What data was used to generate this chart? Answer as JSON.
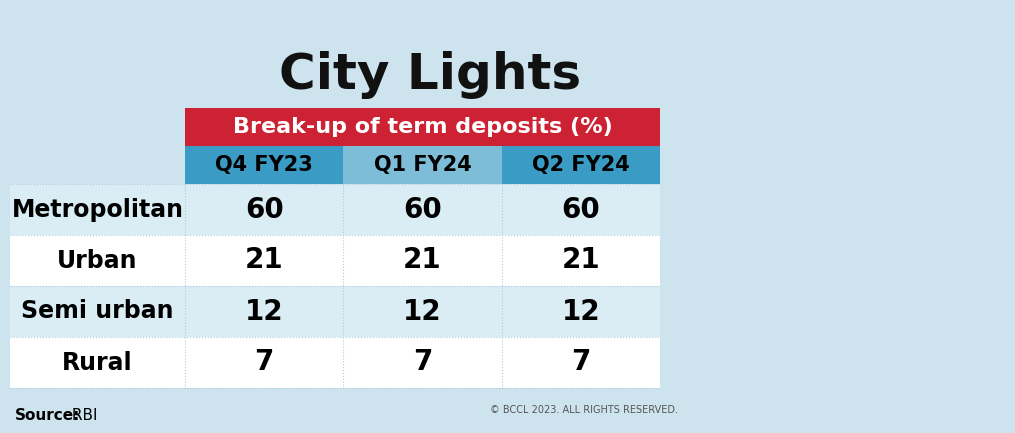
{
  "title": "City Lights",
  "subtitle": "Break-up of term deposits (%)",
  "source_bold": "Source:",
  "source_rest": " RBI",
  "copyright": "© BCCL 2023. ALL RIGHTS RESERVED.",
  "columns": [
    "Q4 FY23",
    "Q1 FY24",
    "Q2 FY24"
  ],
  "rows": [
    "Metropolitan",
    "Urban",
    "Semi urban",
    "Rural"
  ],
  "values": [
    [
      60,
      60,
      60
    ],
    [
      21,
      21,
      21
    ],
    [
      12,
      12,
      12
    ],
    [
      7,
      7,
      7
    ]
  ],
  "bg_color": "#cde4ee",
  "header_red": "#cc2233",
  "col_colors": [
    "#3a9bc4",
    "#7dbdd8",
    "#3a9bc4"
  ],
  "row_bg_colors": [
    "#daedf5",
    "#ffffff",
    "#daedf5",
    "#ffffff"
  ],
  "row_line_color": "#aaccdd",
  "col_line_color": "#aaccdd",
  "title_color": "#111111",
  "title_fontsize": 36,
  "subtitle_fontsize": 16,
  "header_col_fontsize": 15,
  "data_fontsize": 20,
  "row_label_fontsize": 17,
  "source_fontsize": 11
}
